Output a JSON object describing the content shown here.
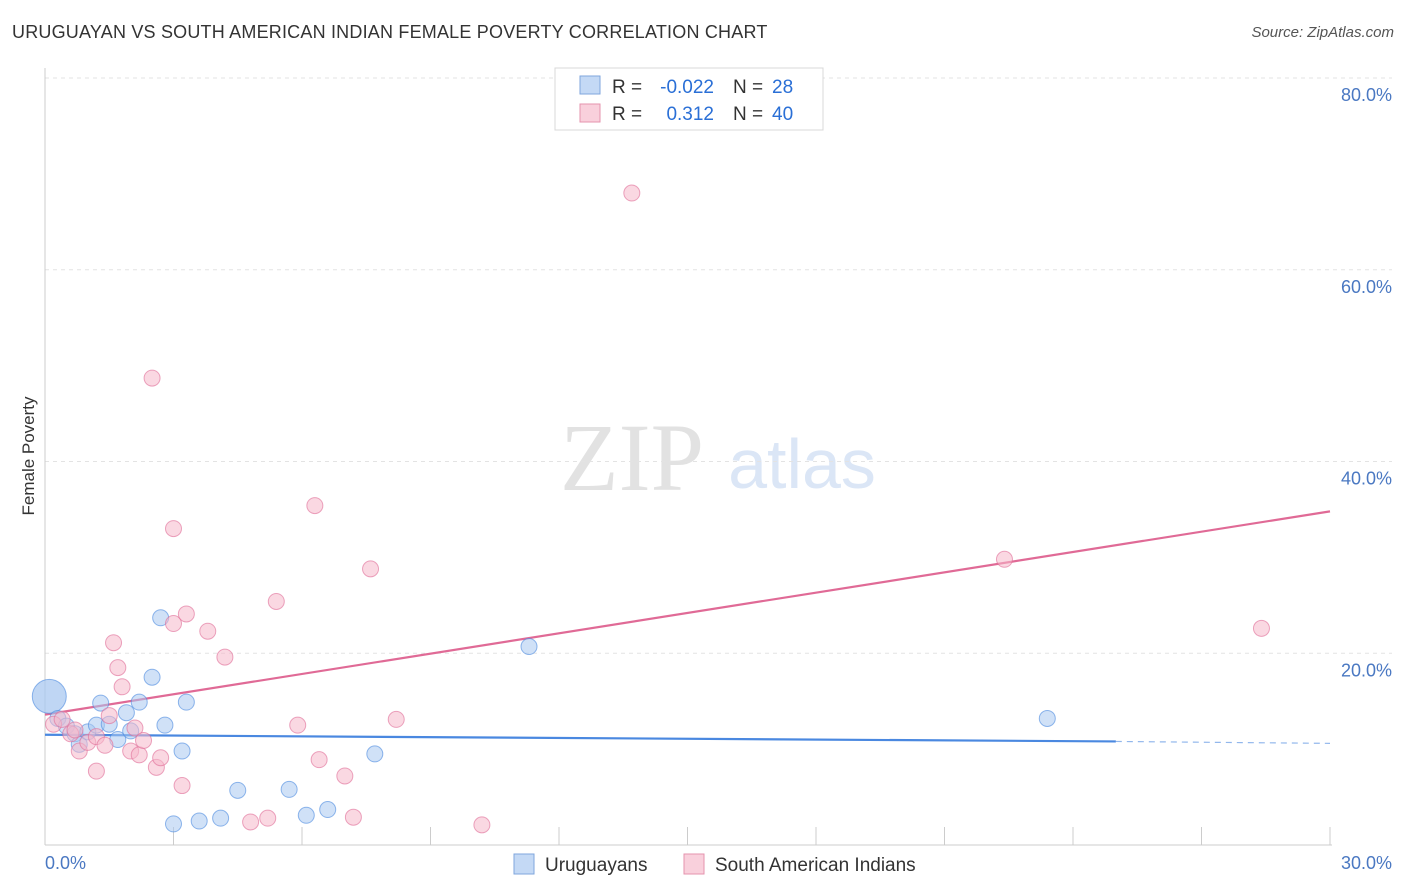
{
  "header": {
    "title": "URUGUAYAN VS SOUTH AMERICAN INDIAN FEMALE POVERTY CORRELATION CHART",
    "source": "Source: ZipAtlas.com"
  },
  "watermark": {
    "zip": "ZIP",
    "atlas": "atlas"
  },
  "legend": {
    "rows": [
      {
        "r_label": "R =",
        "r_value": "-0.022",
        "n_label": "N =",
        "n_value": "28",
        "color": "#a9c8f0"
      },
      {
        "r_label": "R =",
        "r_value": "0.312",
        "n_label": "N =",
        "n_value": "40",
        "color": "#f5b8cb"
      }
    ]
  },
  "chart_data": {
    "type": "scatter",
    "title": "URUGUAYAN VS SOUTH AMERICAN INDIAN FEMALE POVERTY CORRELATION CHART",
    "xlabel": "",
    "ylabel": "Female Poverty",
    "xlim": [
      0,
      30
    ],
    "ylim": [
      0,
      80
    ],
    "x_tick_labels": [
      "0.0%",
      "30.0%"
    ],
    "y_tick_labels": [
      "20.0%",
      "40.0%",
      "60.0%",
      "80.0%"
    ],
    "y_ticks": [
      20,
      40,
      60,
      80
    ],
    "series": [
      {
        "name": "Uruguayans",
        "color": "#4a88e0",
        "fill": "#a9c8f0",
        "points": [
          [
            0.1,
            15.5
          ],
          [
            0.3,
            13.2
          ],
          [
            0.5,
            12.4
          ],
          [
            0.7,
            11.6
          ],
          [
            0.8,
            10.5
          ],
          [
            1.0,
            11.8
          ],
          [
            1.2,
            12.5
          ],
          [
            1.3,
            14.8
          ],
          [
            1.5,
            12.6
          ],
          [
            1.7,
            11.0
          ],
          [
            1.9,
            13.8
          ],
          [
            2.0,
            11.9
          ],
          [
            2.2,
            14.9
          ],
          [
            2.5,
            17.5
          ],
          [
            2.7,
            23.7
          ],
          [
            2.8,
            12.5
          ],
          [
            3.0,
            2.2
          ],
          [
            3.2,
            9.8
          ],
          [
            3.3,
            14.9
          ],
          [
            3.6,
            2.5
          ],
          [
            4.1,
            2.8
          ],
          [
            4.5,
            5.7
          ],
          [
            5.7,
            5.8
          ],
          [
            6.1,
            3.1
          ],
          [
            6.6,
            3.7
          ],
          [
            7.7,
            9.5
          ],
          [
            11.3,
            20.7
          ],
          [
            23.4,
            13.2
          ]
        ],
        "trend": {
          "x": [
            0,
            25
          ],
          "y": [
            11.5,
            10.8
          ],
          "dashed_to": 30,
          "dashed_y": 10.6
        }
      },
      {
        "name": "South American Indians",
        "color": "#e06a96",
        "fill": "#f5b8cb",
        "points": [
          [
            0.2,
            12.6
          ],
          [
            0.4,
            13.1
          ],
          [
            0.6,
            11.6
          ],
          [
            0.7,
            12.0
          ],
          [
            0.8,
            9.8
          ],
          [
            1.0,
            10.7
          ],
          [
            1.2,
            11.3
          ],
          [
            1.2,
            7.7
          ],
          [
            1.4,
            10.4
          ],
          [
            1.5,
            13.5
          ],
          [
            1.6,
            21.1
          ],
          [
            1.7,
            18.5
          ],
          [
            1.8,
            16.5
          ],
          [
            2.0,
            9.8
          ],
          [
            2.1,
            12.2
          ],
          [
            2.2,
            9.4
          ],
          [
            2.3,
            10.9
          ],
          [
            2.5,
            48.7
          ],
          [
            2.6,
            8.1
          ],
          [
            2.7,
            9.1
          ],
          [
            3.0,
            33.0
          ],
          [
            3.0,
            23.1
          ],
          [
            3.2,
            6.2
          ],
          [
            3.3,
            24.1
          ],
          [
            3.8,
            22.3
          ],
          [
            4.2,
            19.6
          ],
          [
            4.8,
            2.4
          ],
          [
            5.2,
            2.8
          ],
          [
            5.4,
            25.4
          ],
          [
            5.9,
            12.5
          ],
          [
            6.3,
            35.4
          ],
          [
            6.4,
            8.9
          ],
          [
            7.0,
            7.2
          ],
          [
            7.2,
            2.9
          ],
          [
            7.6,
            28.8
          ],
          [
            8.2,
            13.1
          ],
          [
            10.2,
            2.1
          ],
          [
            13.7,
            68.0
          ],
          [
            22.4,
            29.8
          ],
          [
            28.4,
            22.6
          ]
        ],
        "trend": {
          "x": [
            0,
            30
          ],
          "y": [
            13.6,
            34.8
          ]
        }
      }
    ]
  },
  "bottom_legend": {
    "items": [
      {
        "label": "Uruguayans",
        "color": "#a9c8f0"
      },
      {
        "label": "South American Indians",
        "color": "#f5b8cb"
      }
    ]
  }
}
